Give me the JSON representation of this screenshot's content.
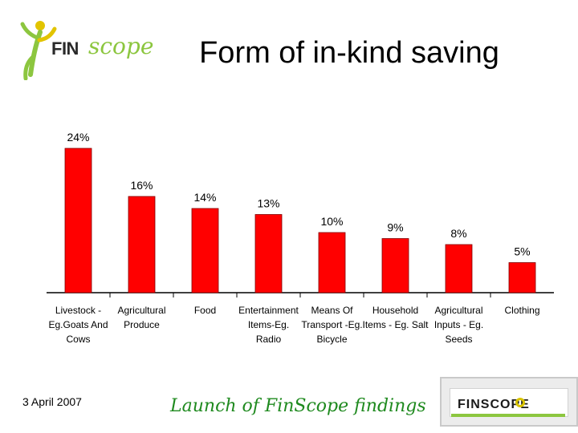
{
  "logo_top": {
    "fin": "FIN",
    "scope": "scope"
  },
  "slide": {
    "title": "Form of in-kind saving"
  },
  "footer": {
    "date": "3 April 2007",
    "launch_text": "Launch of FinScope findings",
    "logo_text": "FINSCOPE"
  },
  "colors": {
    "bar": "#ff0000",
    "bar_outline": "#800000",
    "logo_green": "#8cc63f",
    "footer_green": "#1f8a1f"
  },
  "chart_data": {
    "type": "bar",
    "title": "",
    "xlabel": "",
    "ylabel": "",
    "ylim": [
      0,
      24
    ],
    "grid": false,
    "legend": "none",
    "categories": [
      [
        "Livestock -",
        "Eg.Goats And",
        "Cows"
      ],
      [
        "Agricultural",
        "Produce"
      ],
      [
        "Food"
      ],
      [
        "Entertainment",
        "Items-Eg.",
        "Radio"
      ],
      [
        "Means Of",
        "Transport -Eg.",
        "Bicycle"
      ],
      [
        "Household",
        "Items - Eg. Salt"
      ],
      [
        "Agricultural",
        "Inputs - Eg.",
        "Seeds"
      ],
      [
        "Clothing"
      ]
    ],
    "values": [
      24,
      16,
      14,
      13,
      10,
      9,
      8,
      5
    ],
    "data_labels": [
      "24%",
      "16%",
      "14%",
      "13%",
      "10%",
      "9%",
      "8%",
      "5%"
    ]
  }
}
